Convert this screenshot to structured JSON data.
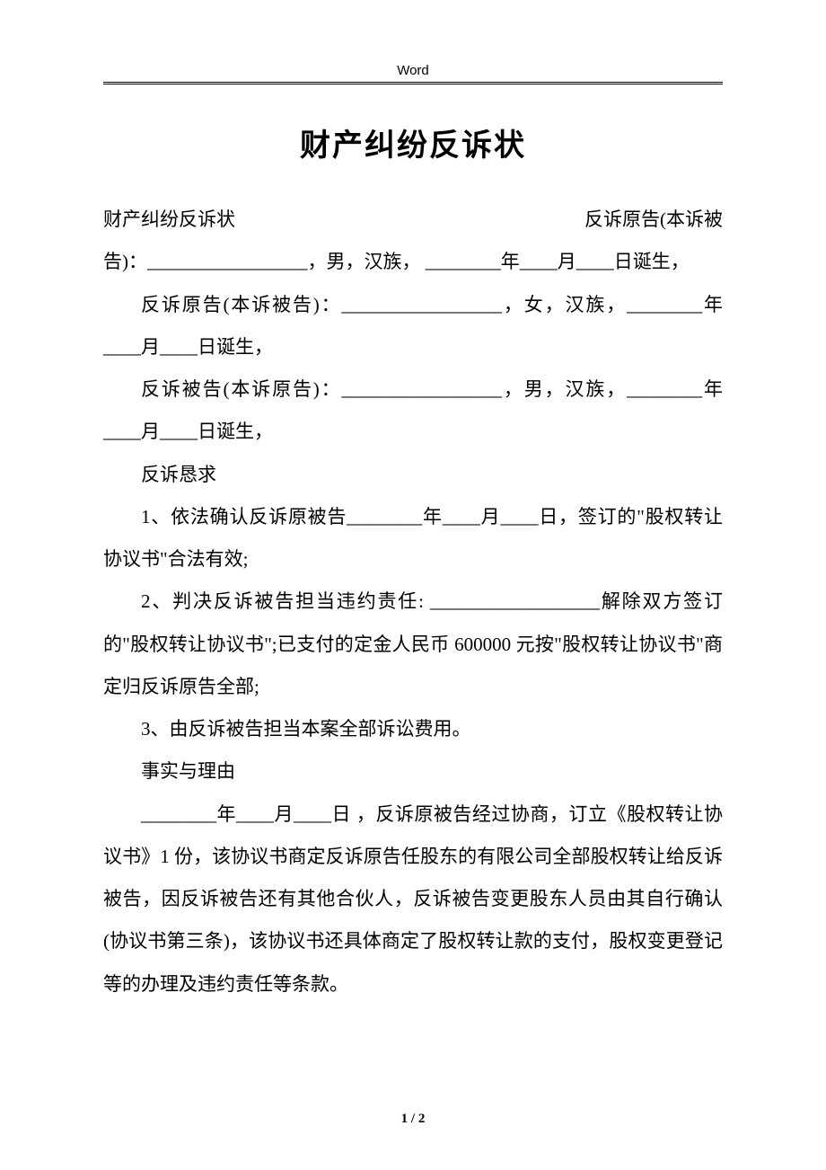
{
  "header": {
    "app_label": "Word"
  },
  "title": "财产纠纷反诉状",
  "lines": {
    "l0a": "财产纠纷反诉状",
    "l0b": "反诉原告(本诉被",
    "l1": "告)：_________________，男，汉族， ________年____月____日诞生，",
    "l2": "反诉原告(本诉被告)：_________________，女，汉族，________年____月____日诞生，",
    "l3": "反诉被告(本诉原告)：_________________，男，汉族，________年____月____日诞生，",
    "l4": "反诉恳求",
    "l5": "1、依法确认反诉原被告________年____月____日，签订的\"股权转让协议书\"合法有效;",
    "l6": "2、判决反诉被告担当违约责任: __________________解除双方签订的\"股权转让协议书\";已支付的定金人民币 600000 元按\"股权转让协议书\"商定归反诉原告全部;",
    "l7": "3、由反诉被告担当本案全部诉讼费用。",
    "l8": "事实与理由",
    "l9": "________年____月____日 ，反诉原被告经过协商，订立《股权转让协议书》1 份，该协议书商定反诉原告任股东的有限公司全部股权转让给反诉被告，因反诉被告还有其他合伙人，反诉被告变更股东人员由其自行确认(协议书第三条)，该协议书还具体商定了股权转让款的支付，股权变更登记等的办理及违约责任等条款。"
  },
  "footer": {
    "page": "1 / 2"
  },
  "colors": {
    "text": "#000000",
    "background": "#ffffff"
  },
  "typography": {
    "title_size": 34,
    "body_size": 21,
    "line_height": 2.25
  }
}
